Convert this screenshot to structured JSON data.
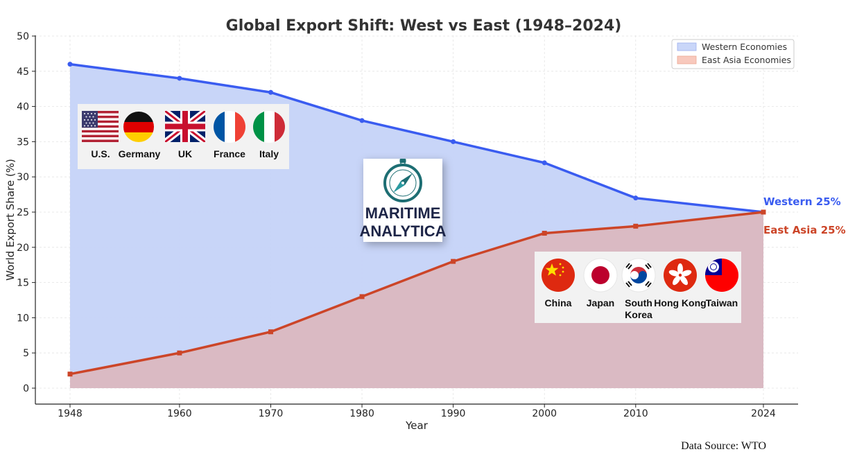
{
  "chart_data": {
    "type": "area",
    "title": "Global Export Shift: West vs East (1948–2024)",
    "xlabel": "Year",
    "ylabel": "World Export Share (%)",
    "x": [
      1948,
      1960,
      1970,
      1980,
      1990,
      2000,
      2010,
      2024
    ],
    "x_tick_labels": [
      "1948",
      "1960",
      "1970",
      "1980",
      "1990",
      "2000",
      "2010",
      "2024"
    ],
    "ylim": [
      0,
      50
    ],
    "y_ticks": [
      0,
      5,
      10,
      15,
      20,
      25,
      30,
      35,
      40,
      45,
      50
    ],
    "grid": true,
    "legend_position": "top-right",
    "series": [
      {
        "name": "Western Economies",
        "values": [
          46,
          44,
          42,
          38,
          35,
          32,
          27,
          25
        ],
        "line_color": "#3a5cf0",
        "fill_color": "#c5d3f8",
        "marker": "circle",
        "end_label": "Western 25%"
      },
      {
        "name": "East Asia Economies",
        "values": [
          2,
          5,
          8,
          13,
          18,
          22,
          23,
          25
        ],
        "line_color": "#cc4528",
        "fill_color": "#dbb8c0",
        "marker": "square",
        "end_label": "East Asia 25%"
      }
    ],
    "legend_swatches": [
      "#c9d6f9",
      "#f8c9bd"
    ]
  },
  "western_flags": {
    "items": [
      {
        "label": "U.S.",
        "icon": "us-flag-icon"
      },
      {
        "label": "Germany",
        "icon": "germany-flag-icon"
      },
      {
        "label": "UK",
        "icon": "uk-flag-icon"
      },
      {
        "label": "France",
        "icon": "france-flag-icon"
      },
      {
        "label": "Italy",
        "icon": "italy-flag-icon"
      }
    ]
  },
  "east_flags": {
    "items": [
      {
        "label": "China",
        "icon": "china-flag-icon"
      },
      {
        "label": "Japan",
        "icon": "japan-flag-icon"
      },
      {
        "label": "South Korea",
        "line1": "South",
        "line2": "Korea",
        "icon": "south-korea-flag-icon"
      },
      {
        "label": "Hong Kong",
        "icon": "hong-kong-flag-icon"
      },
      {
        "label": "Taiwan",
        "icon": "taiwan-flag-icon"
      }
    ]
  },
  "logo": {
    "line1": "MARITIME",
    "line2": "ANALYTICA",
    "icon": "compass-icon"
  },
  "source": "Data Source: WTO"
}
